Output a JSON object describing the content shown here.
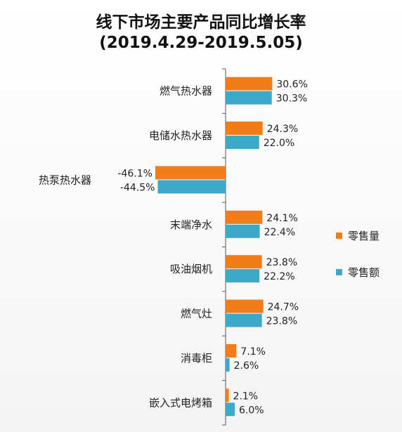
{
  "title": "线下市场主要产品同比增长率",
  "subtitle": "(2019.4.29-2019.5.05)",
  "colors": {
    "sales_volume": "#F07D1A",
    "sales_value": "#3DA8C8"
  },
  "chart_data": {
    "type": "bar",
    "orientation": "horizontal",
    "title": "线下市场主要产品同比增长率",
    "subtitle": "(2019.4.29-2019.5.05)",
    "categories": [
      "燃气热水器",
      "电储水热水器",
      "热泵热水器",
      "末端净水",
      "吸油烟机",
      "燃气灶",
      "消毒柜",
      "嵌入式电烤箱"
    ],
    "series": [
      {
        "name": "零售量",
        "values": [
          30.6,
          24.3,
          -46.1,
          24.1,
          23.8,
          24.7,
          7.1,
          2.1
        ],
        "labels": [
          "30.6%",
          "24.3%",
          "-46.1%",
          "24.1%",
          "23.8%",
          "24.7%",
          "7.1%",
          "2.1%"
        ]
      },
      {
        "name": "零售额",
        "values": [
          30.3,
          22.0,
          -44.5,
          22.4,
          22.2,
          23.8,
          2.6,
          6.0
        ],
        "labels": [
          "30.3%",
          "22.0%",
          "-44.5%",
          "22.4%",
          "22.2%",
          "23.8%",
          "2.6%",
          "6.0%"
        ]
      }
    ],
    "unit": "%",
    "legend_position": "right"
  }
}
